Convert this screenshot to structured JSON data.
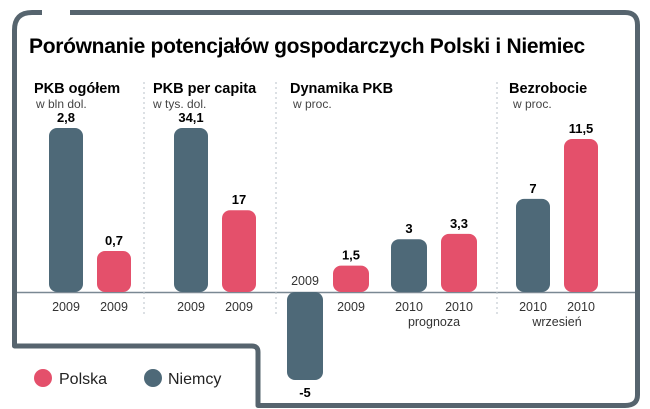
{
  "title": "Porównanie potencjałów gospodarczych Polski i Niemiec",
  "colors": {
    "polska": "#e4506b",
    "niemcy": "#4e6978",
    "frame": "#56646e",
    "divider": "#b9c2c8"
  },
  "legend": [
    {
      "label": "Polska",
      "series": "polska"
    },
    {
      "label": "Niemcy",
      "series": "niemcy"
    }
  ],
  "chart_data": [
    {
      "type": "bar",
      "title": "PKB ogółem",
      "unit": "w bln dol.",
      "bars": [
        {
          "series": "niemcy",
          "value": 2.8,
          "label": "2,8",
          "tick": "2009",
          "note": ""
        },
        {
          "series": "polska",
          "value": 0.7,
          "label": "0,7",
          "tick": "2009",
          "note": ""
        }
      ]
    },
    {
      "type": "bar",
      "title": "PKB per capita",
      "unit": "w tys. dol.",
      "bars": [
        {
          "series": "niemcy",
          "value": 34.1,
          "label": "34,1",
          "tick": "2009",
          "note": ""
        },
        {
          "series": "polska",
          "value": 17,
          "label": "17",
          "tick": "2009",
          "note": ""
        }
      ]
    },
    {
      "type": "bar",
      "title": "Dynamika PKB",
      "unit": "w proc.",
      "bars": [
        {
          "series": "niemcy",
          "value": -5,
          "label": "-5",
          "tick": "2009",
          "note": ""
        },
        {
          "series": "polska",
          "value": 1.5,
          "label": "1,5",
          "tick": "2009",
          "note": ""
        },
        {
          "series": "niemcy",
          "value": 3,
          "label": "3",
          "tick": "2010",
          "note": "prognoza"
        },
        {
          "series": "polska",
          "value": 3.3,
          "label": "3,3",
          "tick": "2010",
          "note": ""
        }
      ]
    },
    {
      "type": "bar",
      "title": "Bezrobocie",
      "unit": "w proc.",
      "bars": [
        {
          "series": "niemcy",
          "value": 7,
          "label": "7",
          "tick": "2010",
          "note": "wrzesień"
        },
        {
          "series": "polska",
          "value": 11.5,
          "label": "11,5",
          "tick": "2010",
          "note": ""
        }
      ]
    }
  ]
}
